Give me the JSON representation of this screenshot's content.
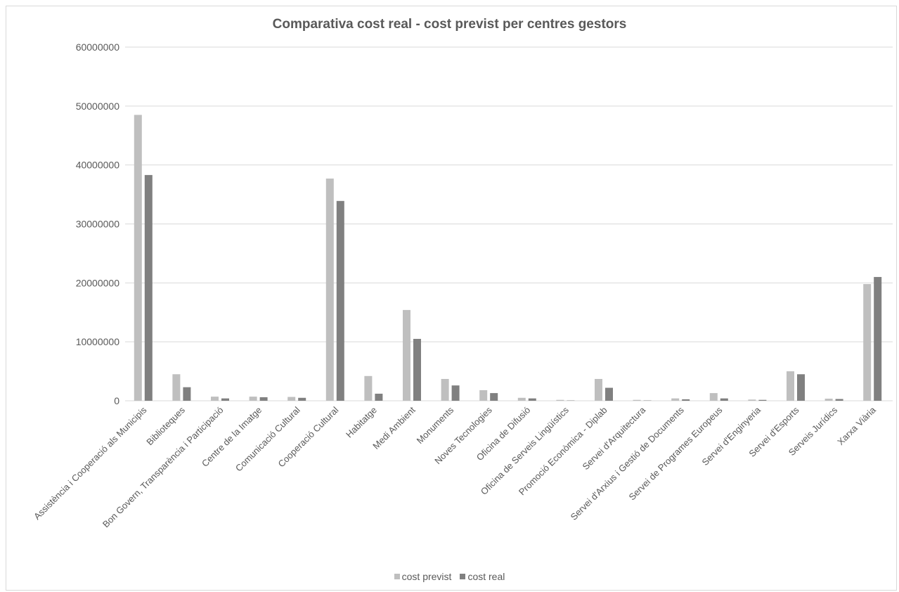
{
  "chart_data": {
    "type": "bar",
    "title": "Comparativa cost real - cost previst per centres gestors",
    "xlabel": "",
    "ylabel": "",
    "ylim": [
      0,
      60000000
    ],
    "yticks": [
      "0",
      "10000000",
      "20000000",
      "30000000",
      "40000000",
      "50000000",
      "60000000"
    ],
    "grid": true,
    "legend": "bottom",
    "categories": [
      "Assistència i Cooperació als Municipis",
      "Biblioteques",
      "Bon Govern, Transparència i Participació",
      "Centre de la Imatge",
      "Comunicació Cultural",
      "Cooperació Cultural",
      "Habitatge",
      "Medi Ambient",
      "Monuments",
      "Noves Tecnologies",
      "Oficina de Difusió",
      "Oficina de Serveis Lingüístics",
      "Promoció Econòmica - Diplab",
      "Servei d'Arquitectura",
      "Servei d'Arxius i Gestió de Documents",
      "Servei de Programes Europeus",
      "Servei d'Enginyeria",
      "Servei d'Esports",
      "Serveis Jurídics",
      "Xarxa Viària"
    ],
    "series": [
      {
        "name": "cost previst",
        "color": "#bfbfbf",
        "values": [
          48500000,
          4500000,
          700000,
          700000,
          650000,
          37700000,
          4200000,
          15400000,
          3700000,
          1800000,
          500000,
          150000,
          3700000,
          150000,
          400000,
          1300000,
          200000,
          5000000,
          350000,
          19800000
        ]
      },
      {
        "name": "cost real",
        "color": "#808080",
        "values": [
          38300000,
          2300000,
          400000,
          600000,
          500000,
          33900000,
          1200000,
          10500000,
          2600000,
          1300000,
          400000,
          50000,
          2200000,
          50000,
          250000,
          400000,
          150000,
          4500000,
          300000,
          21000000
        ]
      }
    ]
  }
}
